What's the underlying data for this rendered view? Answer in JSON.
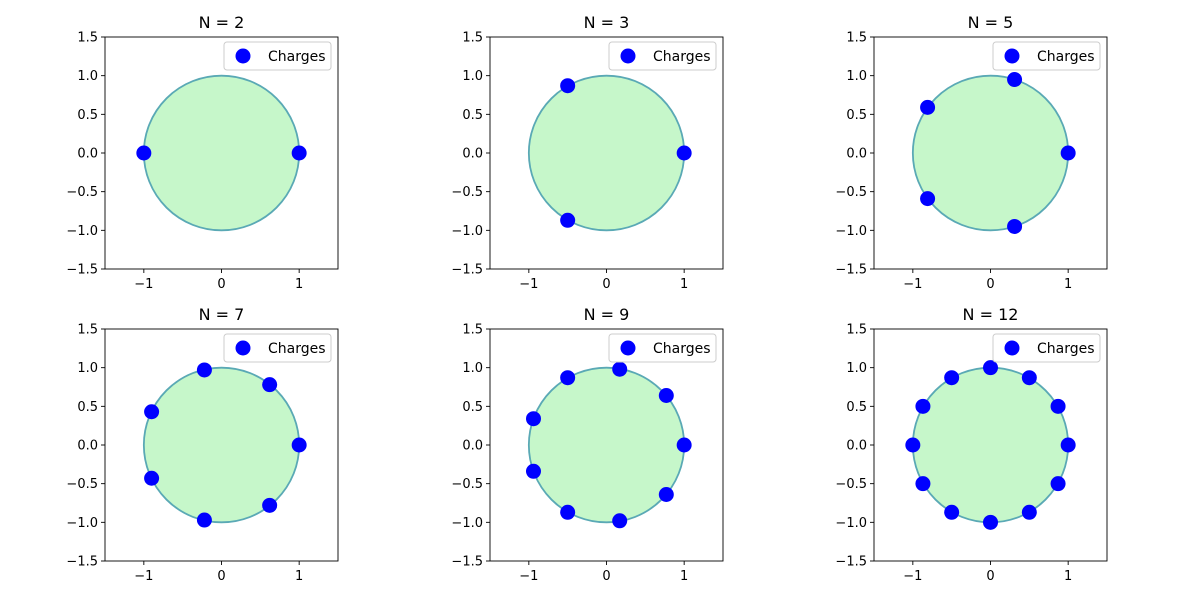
{
  "colors": {
    "disk_fill": "#c6f7ca",
    "circle_edge": "#5aa9b5",
    "charge": "#0000ff",
    "axis": "#000000",
    "legend_border": "#cccccc"
  },
  "legend": {
    "label": "Charges",
    "placement": "upper right"
  },
  "chart_data": [
    {
      "type": "scatter",
      "title": "N = 2",
      "xlim": [
        -1.5,
        1.5
      ],
      "ylim": [
        -1.5,
        1.5
      ],
      "xticks": [
        -1,
        0,
        1
      ],
      "yticks": [
        -1.5,
        -1.0,
        -0.5,
        0.0,
        0.5,
        1.0,
        1.5
      ],
      "xtick_labels": [
        "−1",
        "0",
        "1"
      ],
      "ytick_labels": [
        "−1.5",
        "−1.0",
        "−0.5",
        "0.0",
        "0.5",
        "1.0",
        "1.5"
      ],
      "circle_radius": 1,
      "series": [
        {
          "name": "Charges",
          "points": [
            [
              1,
              0
            ],
            [
              -1,
              0
            ]
          ]
        }
      ]
    },
    {
      "type": "scatter",
      "title": "N = 3",
      "xlim": [
        -1.5,
        1.5
      ],
      "ylim": [
        -1.5,
        1.5
      ],
      "xticks": [
        -1,
        0,
        1
      ],
      "yticks": [
        -1.5,
        -1.0,
        -0.5,
        0.0,
        0.5,
        1.0,
        1.5
      ],
      "xtick_labels": [
        "−1",
        "0",
        "1"
      ],
      "ytick_labels": [
        "−1.5",
        "−1.0",
        "−0.5",
        "0.0",
        "0.5",
        "1.0",
        "1.5"
      ],
      "circle_radius": 1,
      "series": [
        {
          "name": "Charges",
          "points": [
            [
              1,
              0
            ],
            [
              -0.5,
              0.87
            ],
            [
              -0.5,
              -0.87
            ]
          ]
        }
      ]
    },
    {
      "type": "scatter",
      "title": "N = 5",
      "xlim": [
        -1.5,
        1.5
      ],
      "ylim": [
        -1.5,
        1.5
      ],
      "xticks": [
        -1,
        0,
        1
      ],
      "yticks": [
        -1.5,
        -1.0,
        -0.5,
        0.0,
        0.5,
        1.0,
        1.5
      ],
      "xtick_labels": [
        "−1",
        "0",
        "1"
      ],
      "ytick_labels": [
        "−1.5",
        "−1.0",
        "−0.5",
        "0.0",
        "0.5",
        "1.0",
        "1.5"
      ],
      "circle_radius": 1,
      "series": [
        {
          "name": "Charges",
          "points": [
            [
              1,
              0
            ],
            [
              0.31,
              0.95
            ],
            [
              -0.81,
              0.59
            ],
            [
              -0.81,
              -0.59
            ],
            [
              0.31,
              -0.95
            ]
          ]
        }
      ]
    },
    {
      "type": "scatter",
      "title": "N = 7",
      "xlim": [
        -1.5,
        1.5
      ],
      "ylim": [
        -1.5,
        1.5
      ],
      "xticks": [
        -1,
        0,
        1
      ],
      "yticks": [
        -1.5,
        -1.0,
        -0.5,
        0.0,
        0.5,
        1.0,
        1.5
      ],
      "xtick_labels": [
        "−1",
        "0",
        "1"
      ],
      "ytick_labels": [
        "−1.5",
        "−1.0",
        "−0.5",
        "0.0",
        "0.5",
        "1.0",
        "1.5"
      ],
      "circle_radius": 1,
      "series": [
        {
          "name": "Charges",
          "points": [
            [
              1,
              0
            ],
            [
              0.62,
              0.78
            ],
            [
              -0.22,
              0.97
            ],
            [
              -0.9,
              0.43
            ],
            [
              -0.9,
              -0.43
            ],
            [
              -0.22,
              -0.97
            ],
            [
              0.62,
              -0.78
            ]
          ]
        }
      ]
    },
    {
      "type": "scatter",
      "title": "N = 9",
      "xlim": [
        -1.5,
        1.5
      ],
      "ylim": [
        -1.5,
        1.5
      ],
      "xticks": [
        -1,
        0,
        1
      ],
      "yticks": [
        -1.5,
        -1.0,
        -0.5,
        0.0,
        0.5,
        1.0,
        1.5
      ],
      "xtick_labels": [
        "−1",
        "0",
        "1"
      ],
      "ytick_labels": [
        "−1.5",
        "−1.0",
        "−0.5",
        "0.0",
        "0.5",
        "1.0",
        "1.5"
      ],
      "circle_radius": 1,
      "series": [
        {
          "name": "Charges",
          "points": [
            [
              1,
              0
            ],
            [
              0.77,
              0.64
            ],
            [
              0.17,
              0.98
            ],
            [
              -0.5,
              0.87
            ],
            [
              -0.94,
              0.34
            ],
            [
              -0.94,
              -0.34
            ],
            [
              -0.5,
              -0.87
            ],
            [
              0.17,
              -0.98
            ],
            [
              0.77,
              -0.64
            ]
          ]
        }
      ]
    },
    {
      "type": "scatter",
      "title": "N = 12",
      "xlim": [
        -1.5,
        1.5
      ],
      "ylim": [
        -1.5,
        1.5
      ],
      "xticks": [
        -1,
        0,
        1
      ],
      "yticks": [
        -1.5,
        -1.0,
        -0.5,
        0.0,
        0.5,
        1.0,
        1.5
      ],
      "xtick_labels": [
        "−1",
        "0",
        "1"
      ],
      "ytick_labels": [
        "−1.5",
        "−1.0",
        "−0.5",
        "0.0",
        "0.5",
        "1.0",
        "1.5"
      ],
      "circle_radius": 1,
      "series": [
        {
          "name": "Charges",
          "points": [
            [
              1,
              0
            ],
            [
              0.87,
              0.5
            ],
            [
              0.5,
              0.87
            ],
            [
              0,
              1
            ],
            [
              -0.5,
              0.87
            ],
            [
              -0.87,
              0.5
            ],
            [
              -1,
              0
            ],
            [
              -0.87,
              -0.5
            ],
            [
              -0.5,
              -0.87
            ],
            [
              0,
              -1
            ],
            [
              0.5,
              -0.87
            ],
            [
              0.87,
              -0.5
            ]
          ]
        }
      ]
    }
  ]
}
